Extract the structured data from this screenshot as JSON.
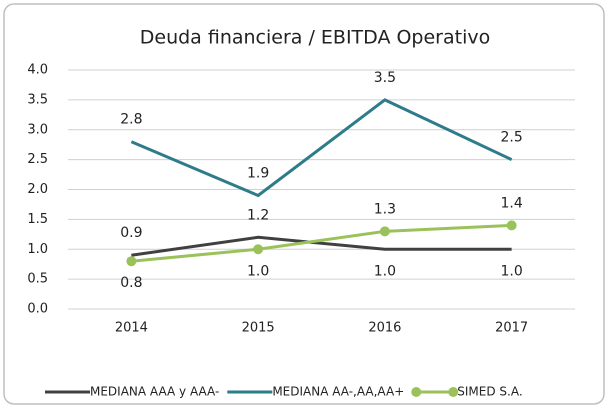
{
  "chart_data": {
    "type": "line",
    "title": "Deuda financiera / EBITDA Operativo",
    "categories": [
      "2014",
      "2015",
      "2016",
      "2017"
    ],
    "series": [
      {
        "name": "MEDIANA AAA y AAA-",
        "color": "#404040",
        "values": [
          0.9,
          1.2,
          1.0,
          1.0
        ],
        "value_labels": [
          "0.9",
          "1.2",
          "1.0",
          "1.0"
        ]
      },
      {
        "name": "MEDIANA AA-,AA,AA+",
        "color": "#2e7b8a",
        "values": [
          2.8,
          1.9,
          3.5,
          2.5
        ]
      },
      {
        "name": "SIMED S.A.",
        "color": "#9bc25a",
        "values": [
          0.8,
          1.0,
          1.3,
          1.4
        ],
        "value_labels": [
          "0.8",
          "1.0",
          "1.3",
          "1.4"
        ]
      }
    ],
    "ylim": [
      0,
      4
    ],
    "yticks": [
      {
        "value": 0,
        "label": "0.0"
      },
      {
        "value": 0.5,
        "label": "0.5"
      },
      {
        "value": 1,
        "label": "1.0"
      },
      {
        "value": 1.5,
        "label": "1.5"
      },
      {
        "value": 2,
        "label": "2.0"
      },
      {
        "value": 2.5,
        "label": "2.5"
      },
      {
        "value": 3,
        "label": "3.0"
      },
      {
        "value": 3.5,
        "label": "3.5"
      },
      {
        "value": 4,
        "label": "4.0"
      }
    ],
    "grid": true,
    "legend": "bottom"
  }
}
